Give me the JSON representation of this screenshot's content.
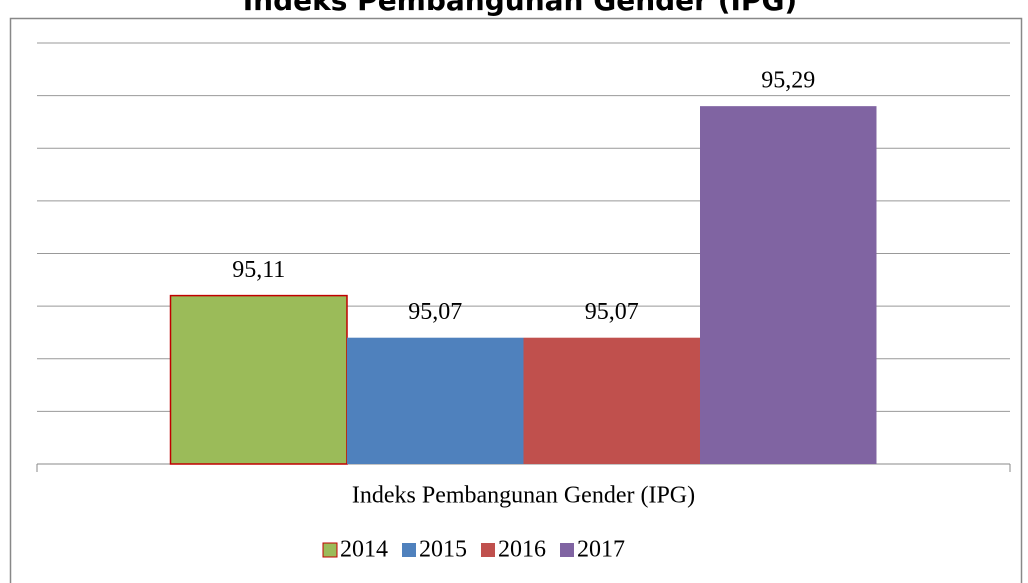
{
  "chart_data": {
    "type": "bar",
    "title": "Indeks Pembangunan Gender (IPG)",
    "categories": [
      "Indeks Pembangunan Gender (IPG)"
    ],
    "series": [
      {
        "name": "2014",
        "color": "#9bbb59",
        "values": [
          95.11
        ],
        "value_labels": [
          "95,11"
        ]
      },
      {
        "name": "2015",
        "color": "#4f81bd",
        "values": [
          95.07
        ],
        "value_labels": [
          "95,07"
        ]
      },
      {
        "name": "2016",
        "color": "#c0504d",
        "values": [
          95.07
        ],
        "value_labels": [
          "95,07"
        ]
      },
      {
        "name": "2017",
        "color": "#8064a2",
        "values": [
          95.29
        ],
        "value_labels": [
          "95,29"
        ]
      }
    ],
    "ylim": [
      94.95,
      95.35
    ],
    "yticks": [
      94.95,
      95.0,
      95.05,
      95.1,
      95.15,
      95.2,
      95.25,
      95.3,
      95.35
    ],
    "grid": true,
    "legend": "bottom"
  }
}
